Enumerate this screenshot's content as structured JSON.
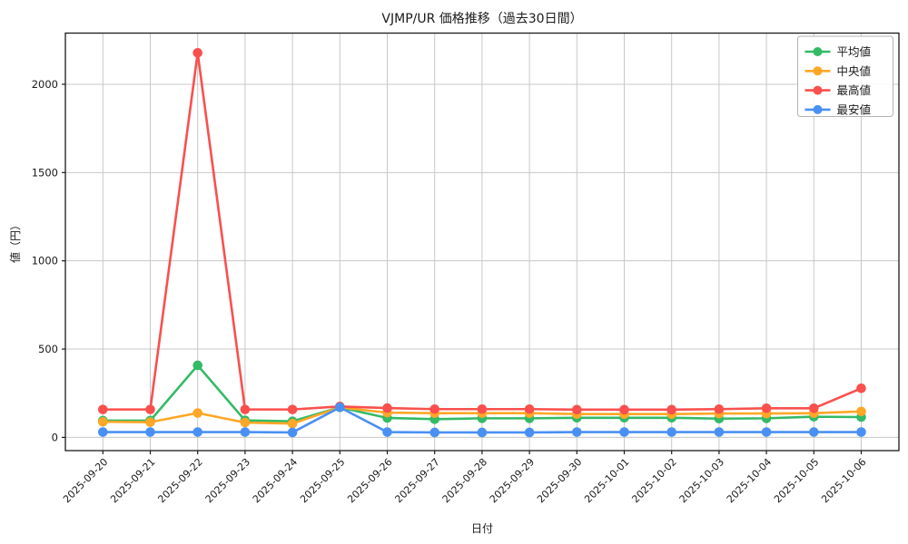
{
  "chart_data": {
    "type": "line",
    "title": "VJMP/UR 価格推移（過去30日間）",
    "xlabel": "日付",
    "ylabel": "値（円）",
    "grid": true,
    "legend_position": "upper right",
    "yticks": [
      0,
      500,
      1000,
      1500,
      2000
    ],
    "ylim": [
      -75,
      2290
    ],
    "categories": [
      "2025-09-20",
      "2025-09-21",
      "2025-09-22",
      "2025-09-23",
      "2025-09-24",
      "2025-09-25",
      "2025-09-26",
      "2025-09-27",
      "2025-09-28",
      "2025-09-29",
      "2025-09-30",
      "2025-10-01",
      "2025-10-02",
      "2025-10-03",
      "2025-10-04",
      "2025-10-05",
      "2025-10-06"
    ],
    "series": [
      {
        "key": "average",
        "name": "平均値",
        "color": "#33ba66",
        "values": [
          95,
          95,
          408,
          96,
          91,
          170,
          110,
          103,
          108,
          108,
          111,
          111,
          111,
          106,
          108,
          117,
          115
        ]
      },
      {
        "key": "median",
        "name": "中央値",
        "color": "#ffa726",
        "values": [
          88,
          86,
          138,
          84,
          78,
          170,
          140,
          137,
          137,
          137,
          132,
          132,
          132,
          135,
          135,
          137,
          147
        ]
      },
      {
        "key": "max",
        "name": "最高値",
        "color": "#f9504e",
        "values": [
          158,
          158,
          2178,
          158,
          158,
          175,
          166,
          160,
          160,
          160,
          157,
          157,
          157,
          160,
          165,
          165,
          278
        ]
      },
      {
        "key": "min",
        "name": "最安値",
        "color": "#4a90f4",
        "values": [
          30,
          30,
          30,
          30,
          28,
          170,
          30,
          28,
          28,
          28,
          30,
          30,
          30,
          30,
          30,
          30,
          30
        ]
      }
    ],
    "colors": {
      "grid": "#c8c8c8",
      "spine": "#1a1a1a",
      "legend_border": "#b3b3b3",
      "background": "#ffffff"
    }
  }
}
